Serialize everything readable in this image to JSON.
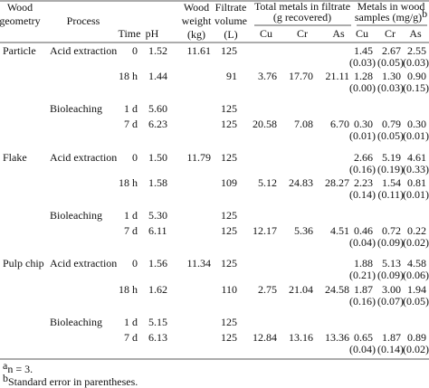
{
  "table": {
    "header": {
      "cells": [
        {
          "lines": [
            "Wood",
            "geometry"
          ]
        },
        {
          "lines": [
            "Process"
          ]
        },
        {
          "lines": [
            "Time"
          ]
        },
        {
          "lines": [
            "pH"
          ]
        },
        {
          "lines": [
            "Wood",
            "weight",
            "(kg)"
          ]
        },
        {
          "lines": [
            "Filtrate",
            "volume",
            "(L)"
          ]
        }
      ],
      "groups": [
        {
          "lines": [
            "Total metals in filtrate",
            "(g recovered)"
          ],
          "sup": null
        },
        {
          "lines": [
            "Metals in wood",
            "samples (mg/g)"
          ],
          "sup": "b"
        }
      ],
      "subheaders": [
        "Cu",
        "Cr",
        "As",
        "Cu",
        "Cr",
        "As"
      ]
    },
    "rows": [
      [
        "Particle",
        "Acid extraction",
        "0",
        "1.52",
        "11.61",
        "125",
        null,
        null,
        null,
        [
          "1.45",
          "(0.03)"
        ],
        [
          "2.67",
          "(0.05)"
        ],
        [
          "2.55",
          "(0.03)"
        ]
      ],
      [
        null,
        null,
        "18 h",
        "1.44",
        null,
        "91",
        "3.76",
        "17.70",
        "21.11",
        [
          "1.28",
          "(0.00)"
        ],
        [
          "1.30",
          "(0.03)"
        ],
        [
          "0.90",
          "(0.15)"
        ]
      ],
      [
        null,
        "Bioleaching",
        "1 d",
        "5.60",
        null,
        "125",
        null,
        null,
        null,
        null,
        null,
        null
      ],
      [
        null,
        null,
        "7 d",
        "6.23",
        null,
        "125",
        "20.58",
        "7.08",
        "6.70",
        [
          "0.30",
          "(0.01)"
        ],
        [
          "0.79",
          "(0.05)"
        ],
        [
          "0.30",
          "(0.01)"
        ]
      ],
      [
        "Flake",
        "Acid extraction",
        "0",
        "1.50",
        "11.79",
        "125",
        null,
        null,
        null,
        [
          "2.66",
          "(0.16)"
        ],
        [
          "5.19",
          "(0.19)"
        ],
        [
          "4.61",
          "(0.33)"
        ]
      ],
      [
        null,
        null,
        "18 h",
        "1.58",
        null,
        "109",
        "5.12",
        "24.83",
        "28.27",
        [
          "2.23",
          "(0.14)"
        ],
        [
          "1.54",
          "(0.11)"
        ],
        [
          "0.81",
          "(0.01)"
        ]
      ],
      [
        null,
        "Bioleaching",
        "1 d",
        "5.30",
        null,
        "125",
        null,
        null,
        null,
        null,
        null,
        null
      ],
      [
        null,
        null,
        "7 d",
        "6.11",
        null,
        "125",
        "12.17",
        "5.36",
        "4.51",
        [
          "0.46",
          "(0.04)"
        ],
        [
          "0.72",
          "(0.09)"
        ],
        [
          "0.22",
          "(0.02)"
        ]
      ],
      [
        "Pulp chip",
        "Acid extraction",
        "0",
        "1.56",
        "11.34",
        "125",
        null,
        null,
        null,
        [
          "1.88",
          "(0.21)"
        ],
        [
          "5.13",
          "(0.09)"
        ],
        [
          "4.58",
          "(0.06)"
        ]
      ],
      [
        null,
        null,
        "18 h",
        "1.62",
        null,
        "110",
        "2.75",
        "21.04",
        "24.58",
        [
          "1.87",
          "(0.16)"
        ],
        [
          "3.00",
          "(0.07)"
        ],
        [
          "1.94",
          "(0.05)"
        ]
      ],
      [
        null,
        "Bioleaching",
        "1 d",
        "5.15",
        null,
        "125",
        null,
        null,
        null,
        null,
        null,
        null
      ],
      [
        null,
        null,
        "7 d",
        "6.13",
        null,
        "125",
        "12.84",
        "13.16",
        "13.36",
        [
          "0.65",
          "(0.04)"
        ],
        [
          "1.87",
          "(0.14)"
        ],
        [
          "0.89",
          "(0.02)"
        ]
      ]
    ],
    "footnotes": [
      {
        "mark": "a",
        "text": "n = 3."
      },
      {
        "mark": "b",
        "text": "Standard error in parentheses."
      }
    ]
  }
}
